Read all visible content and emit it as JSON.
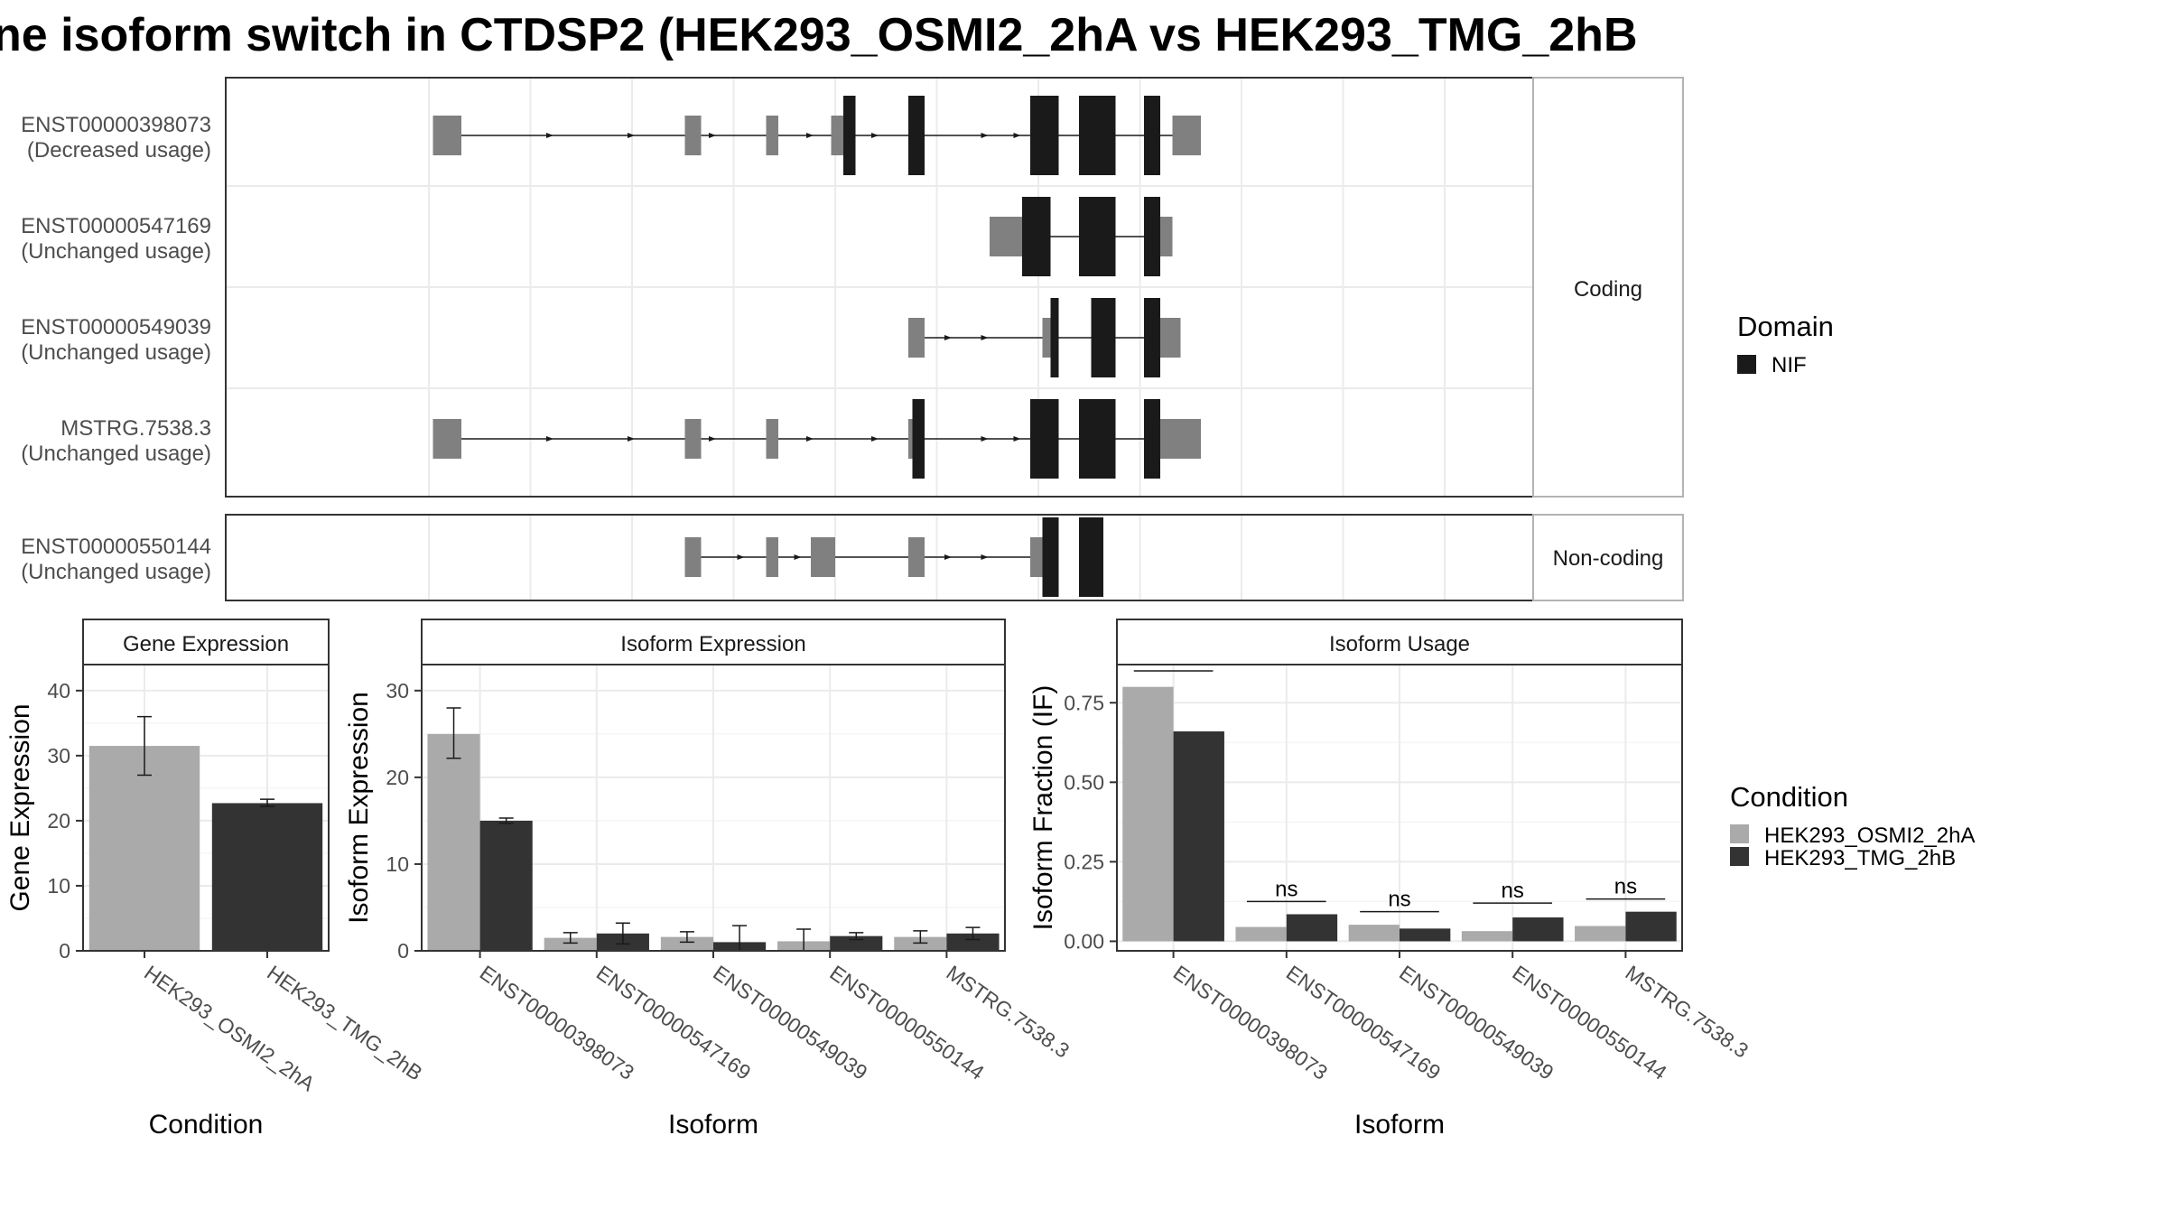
{
  "title": "ne isoform switch in CTDSP2 (HEK293_OSMI2_2hA vs HEK293_TMG_2hB",
  "colors": {
    "utr": "#808080",
    "nif": "#1a1a1a",
    "cond_a": "#aaaaaa",
    "cond_b": "#333333",
    "strip_fill": "#f2f2f2",
    "grid": "#ebebeb"
  },
  "structure": {
    "coding_label": "Coding",
    "noncoding_label": "Non-coding",
    "transcripts": [
      {
        "id": "ENST00000398073",
        "usage": "(Decreased usage)",
        "group": "coding",
        "utr": [
          [
            1,
            8
          ],
          [
            63,
            67
          ],
          [
            83,
            86
          ],
          [
            99,
            102
          ],
          [
            118,
            122
          ],
          [
            183,
            190
          ]
        ],
        "nif": [
          [
            102,
            105
          ],
          [
            118,
            122
          ],
          [
            148,
            155
          ],
          [
            160,
            169
          ],
          [
            176,
            180
          ]
        ],
        "intron": [
          8,
          183
        ],
        "arrows": [
          30,
          50,
          70,
          94,
          110,
          137,
          145
        ]
      },
      {
        "id": "ENST00000547169",
        "usage": "(Unchanged usage)",
        "group": "coding",
        "utr": [
          [
            138,
            146
          ],
          [
            176,
            183
          ]
        ],
        "nif": [
          [
            146,
            153
          ],
          [
            160,
            169
          ],
          [
            176,
            180
          ]
        ],
        "intron": [
          146,
          176
        ],
        "arrows": []
      },
      {
        "id": "ENST00000549039",
        "usage": "(Unchanged usage)",
        "group": "coding",
        "utr": [
          [
            118,
            122
          ],
          [
            151,
            153
          ],
          [
            176,
            185
          ]
        ],
        "nif": [
          [
            153,
            155
          ],
          [
            163,
            169
          ],
          [
            176,
            180
          ]
        ],
        "intron": [
          122,
          176
        ],
        "arrows": [
          128,
          137
        ]
      },
      {
        "id": "MSTRG.7538.3",
        "usage": "(Unchanged usage)",
        "group": "coding",
        "utr": [
          [
            1,
            8
          ],
          [
            63,
            67
          ],
          [
            83,
            86
          ],
          [
            118,
            122
          ],
          [
            180,
            190
          ]
        ],
        "nif": [
          [
            119,
            122
          ],
          [
            148,
            155
          ],
          [
            160,
            169
          ],
          [
            176,
            180
          ]
        ],
        "intron": [
          8,
          180
        ],
        "arrows": [
          30,
          50,
          70,
          94,
          110,
          137,
          145
        ]
      },
      {
        "id": "ENST00000550144",
        "usage": "(Unchanged usage)",
        "group": "noncoding",
        "utr": [
          [
            63,
            67
          ],
          [
            83,
            86
          ],
          [
            94,
            100
          ],
          [
            118,
            122
          ],
          [
            148,
            151
          ]
        ],
        "nif": [
          [
            151,
            155
          ],
          [
            160,
            166
          ]
        ],
        "intron": [
          67,
          151
        ],
        "arrows": [
          77,
          91,
          128,
          137
        ]
      }
    ]
  },
  "legend_domain": {
    "title": "Domain",
    "items": [
      "NIF"
    ]
  },
  "legend_condition": {
    "title": "Condition",
    "items": [
      "HEK293_OSMI2_2hA",
      "HEK293_TMG_2hB"
    ]
  },
  "chart_data": [
    {
      "type": "bar",
      "title": "Gene Expression",
      "xlabel": "Condition",
      "ylabel": "Gene Expression",
      "ylim": [
        0,
        44
      ],
      "yticks": [
        0,
        10,
        20,
        30,
        40
      ],
      "categories": [
        "HEK293_OSMI2_2hA",
        "HEK293_TMG_2hB"
      ],
      "series": [
        {
          "name": "HEK293_OSMI2_2hA",
          "values": [
            31.5,
            null
          ],
          "err": [
            [
              27,
              36
            ],
            null
          ]
        },
        {
          "name": "HEK293_TMG_2hB",
          "values": [
            null,
            22.7
          ],
          "err": [
            null,
            [
              22.2,
              23.3
            ]
          ]
        }
      ]
    },
    {
      "type": "bar",
      "title": "Isoform Expression",
      "xlabel": "Isoform",
      "ylabel": "Isoform Expression",
      "ylim": [
        0,
        33
      ],
      "yticks": [
        0,
        10,
        20,
        30
      ],
      "categories": [
        "ENST00000398073",
        "ENST00000547169",
        "ENST00000549039",
        "ENST00000550144",
        "MSTRG.7538.3"
      ],
      "series": [
        {
          "name": "HEK293_OSMI2_2hA",
          "values": [
            25.0,
            1.5,
            1.6,
            1.1,
            1.6
          ],
          "err": [
            [
              22.2,
              28.0
            ],
            [
              0.9,
              2.1
            ],
            [
              1.0,
              2.2
            ],
            [
              0.0,
              2.5
            ],
            [
              0.9,
              2.3
            ]
          ]
        },
        {
          "name": "HEK293_TMG_2hB",
          "values": [
            15.0,
            2.0,
            1.0,
            1.7,
            2.0
          ],
          "err": [
            [
              14.7,
              15.3
            ],
            [
              0.8,
              3.2
            ],
            [
              0.0,
              2.9
            ],
            [
              1.3,
              2.1
            ],
            [
              1.3,
              2.7
            ]
          ]
        }
      ]
    },
    {
      "type": "bar",
      "title": "Isoform Usage",
      "xlabel": "Isoform",
      "ylabel": "Isoform Fraction (IF)",
      "ylim": [
        -0.03,
        0.87
      ],
      "yticks": [
        0,
        0.25,
        0.5,
        0.75
      ],
      "ytick_labels": [
        "0.00",
        "0.25",
        "0.50",
        "0.75"
      ],
      "categories": [
        "ENST00000398073",
        "ENST00000547169",
        "ENST00000549039",
        "ENST00000550144",
        "MSTRG.7538.3"
      ],
      "series": [
        {
          "name": "HEK293_OSMI2_2hA",
          "values": [
            0.8,
            0.045,
            0.052,
            0.032,
            0.048
          ]
        },
        {
          "name": "HEK293_TMG_2hB",
          "values": [
            0.66,
            0.085,
            0.04,
            0.075,
            0.093
          ]
        }
      ],
      "annotations": [
        "*",
        "ns",
        "ns",
        "ns",
        "ns"
      ],
      "annotation_y": [
        0.85,
        0.125,
        0.093,
        0.12,
        0.133
      ]
    }
  ]
}
